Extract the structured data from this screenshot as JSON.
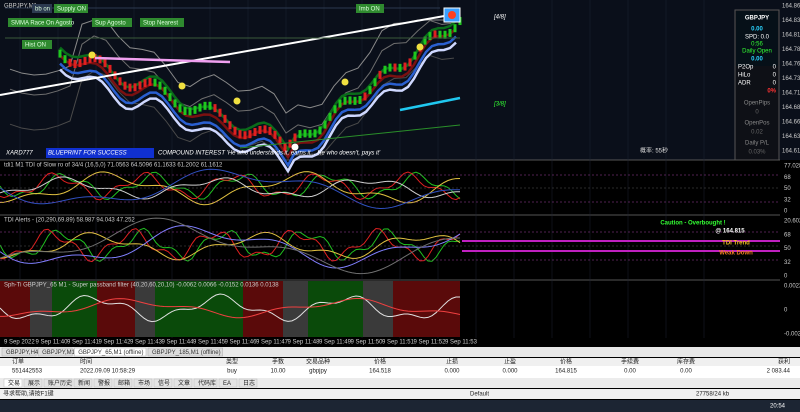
{
  "window": {
    "symbol_tab": "GBPJPY,M1",
    "toolbar_buttons": [
      "bb on",
      "Supply ON",
      "Imb ON",
      "SMMA Race On Agosto",
      "Sup Agosto",
      "Stop Nearest",
      "Hist ON"
    ],
    "markers": [
      "[4/8]",
      "[3/8]"
    ],
    "banner": {
      "brand": "XARD777",
      "blueprint": "BLUEPRINT FOR SUCCESS",
      "quote": "COMPOUND INTEREST 'He who understands it, earns it... He who doesn't, pays it'",
      "timer": "概率: 55秒"
    },
    "price_axis": [
      "164.860",
      "164.835",
      "164.810",
      "164.785",
      "164.760",
      "164.735",
      "164.710",
      "164.685",
      "164.660",
      "164.635",
      "164.610"
    ],
    "info_panel": {
      "symbol": "GBPJPY",
      "price": "0.00",
      "spread": "SPD: 0.0",
      "countdown": "0:56",
      "daily_open_label": "Daily Open",
      "daily_open": "0.00",
      "rows": [
        [
          "P2Op",
          "0"
        ],
        [
          "HiLo",
          "0"
        ],
        [
          "ADR",
          "0"
        ]
      ],
      "percent": "0%",
      "open_pips_label": "OpenPips",
      "open_pips": "0",
      "open_pos_label": "OpenPos",
      "open_pos": "0.02",
      "daily_pl_label": "Daily P/L",
      "daily_pl": "0.03%"
    }
  },
  "indicators": [
    {
      "label": "tdi1 M1 TDI of Slow ro of 34/4 (16,5,0) 71.0563 64.5096 61.1633 61.2002 61.1612",
      "axis": [
        "77.0285",
        "68",
        "50",
        "32",
        "0"
      ]
    },
    {
      "label": "TDI Alerts - (20,290,69.89) 58.987 94.043 47.252",
      "axis": [
        "20.6022",
        "68",
        "50",
        "32",
        "0"
      ]
    },
    {
      "label": "Sph-Ti GBPJPY_65 M1 - Super passband filter (40,20,60,20,10) -0.0062 0.0066 -0.0152 0.0136 0.0138",
      "axis": [
        "0.0022",
        "0",
        "-0.0022"
      ]
    }
  ],
  "alerts": {
    "caution": "Caution - Overbought !",
    "price": "@ 164.815",
    "trend_label": "TDI Trend",
    "trend": "Weak Down"
  },
  "time_axis": [
    "9 Sep 2022",
    "9 Sep 11:40",
    "9 Sep 11:41",
    "9 Sep 11:42",
    "9 Sep 11:43",
    "9 Sep 11:44",
    "9 Sep 11:45",
    "9 Sep 11:46",
    "9 Sep 11:47",
    "9 Sep 11:48",
    "9 Sep 11:49",
    "9 Sep 11:50",
    "9 Sep 11:51",
    "9 Sep 11:52",
    "9 Sep 11:53"
  ],
  "chart_tabs": [
    "GBPJPY,H4",
    "GBPJPY,M1",
    "GBPJPY_65,M1 (offline)",
    "GBPJPY_185,M1 (offline)"
  ],
  "trade_table": {
    "headers": [
      "订单",
      "时间",
      "类型",
      "手数",
      "交易品种",
      "价格",
      "止损",
      "止盈",
      "价格",
      "手续费",
      "库存费",
      "获利"
    ],
    "rows": [
      [
        "551442553",
        "2022.09.09 10:58:29",
        "buy",
        "10.00",
        "gbpjpy",
        "164.518",
        "0.000",
        "0.000",
        "164.815",
        "0.00",
        "0.00",
        "2 083.44"
      ]
    ]
  },
  "terminal_tabs": [
    "交易",
    "展示",
    "账户历史",
    "新闻",
    "警报",
    "邮箱",
    "市场",
    "信号",
    "文章",
    "代码库",
    "EA",
    "日志"
  ],
  "status_bar": {
    "help": "寻求帮助,请按F1键",
    "profile": "Default",
    "traffic": "27758/24 kb",
    "clock": "20:54"
  }
}
